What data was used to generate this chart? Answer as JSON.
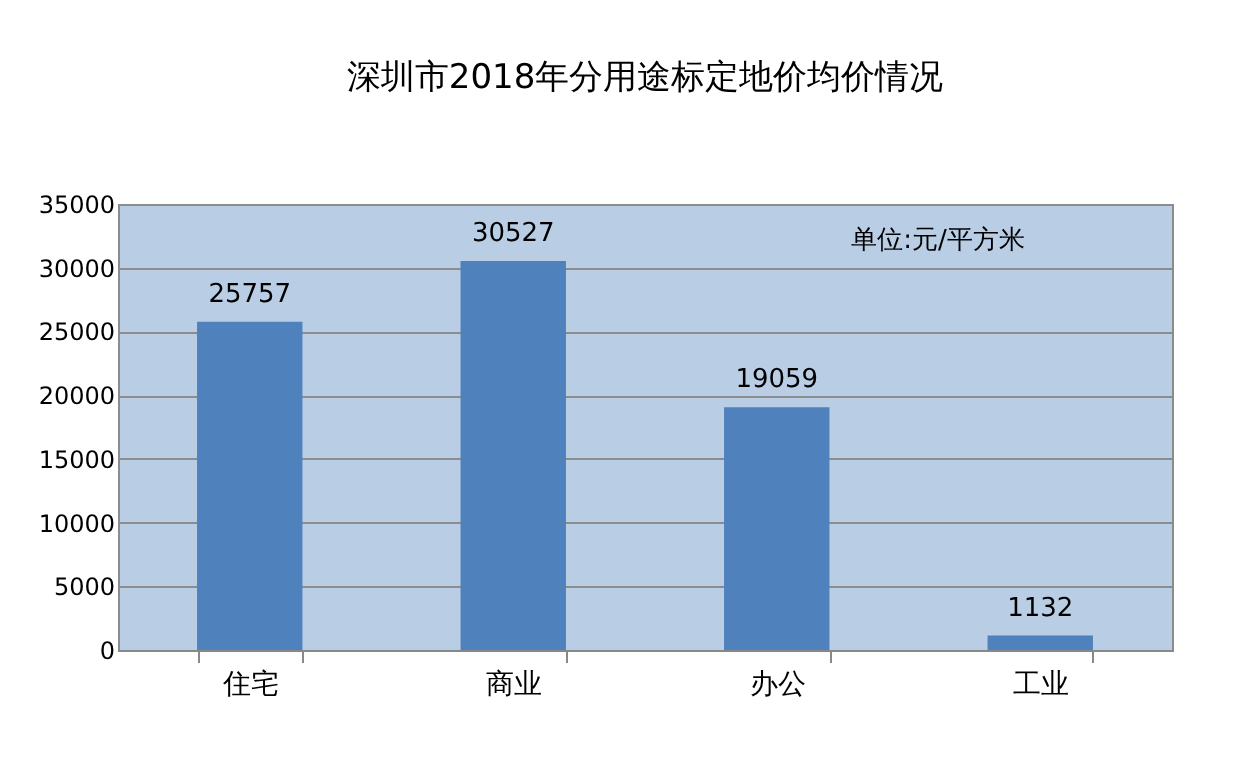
{
  "chart_data": {
    "type": "bar",
    "title": "深圳市2018年分用途标定地价均价情况",
    "categories": [
      "住宅",
      "商业",
      "办公",
      "工业"
    ],
    "values": [
      25757,
      30527,
      19059,
      1132
    ],
    "color": "#4f81bd",
    "ylim": [
      0,
      35000
    ],
    "yticks": [
      0,
      5000,
      10000,
      15000,
      20000,
      25000,
      30000,
      35000
    ],
    "grid": "y",
    "data_labels": true,
    "annotations": [
      "单位:元/平方米"
    ]
  }
}
